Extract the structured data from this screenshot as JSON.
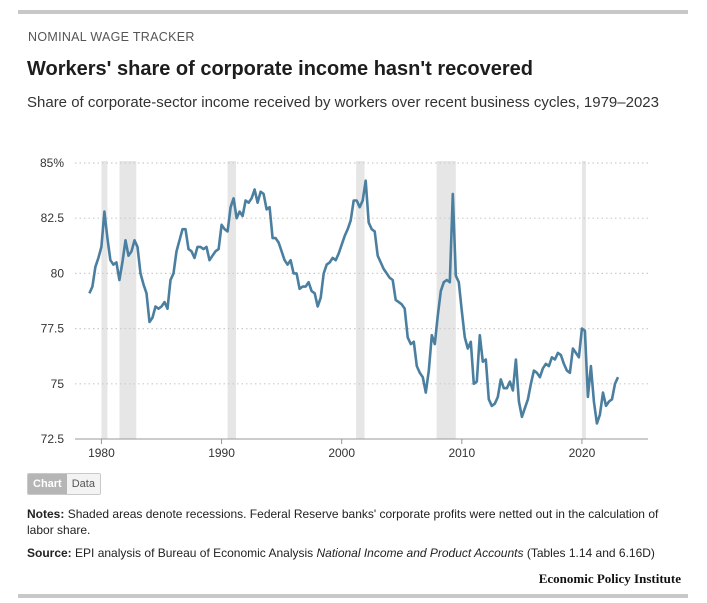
{
  "header": {
    "kicker": "NOMINAL WAGE TRACKER",
    "title": "Workers' share of corporate income hasn't recovered",
    "subtitle": "Share of corporate-sector income received by workers over recent business cycles, 1979–2023"
  },
  "toggle": {
    "chart_label": "Chart",
    "data_label": "Data"
  },
  "footer": {
    "notes_label": "Notes:",
    "notes_text": "Shaded areas denote recessions. Federal Reserve banks' corporate profits were netted out in the calculation of labor share.",
    "source_label": "Source:",
    "source_pre": "EPI analysis of Bureau of Economic Analysis ",
    "source_italic": "National Income and Product Accounts",
    "source_post": " (Tables 1.14 and 6.16D)",
    "brand": "Economic Policy Institute"
  },
  "colors": {
    "line": "#4b7fa0",
    "recession": "#e6e6e6",
    "grid": "#cccccc",
    "axis": "#999999"
  },
  "chart_data": {
    "type": "line",
    "xlim": [
      1977.8,
      2025.5
    ],
    "ylim": [
      72.5,
      85
    ],
    "x_ticks": [
      1980,
      1990,
      2000,
      2010,
      2020
    ],
    "x_tick_labels": [
      "1980",
      "1990",
      "2000",
      "2010",
      "2020"
    ],
    "y_ticks": [
      72.5,
      75,
      77.5,
      80,
      82.5,
      85
    ],
    "y_tick_labels": [
      "72.5",
      "75",
      "77.5",
      "80",
      "82.5",
      "85%"
    ],
    "grid": "horizontal dotted",
    "recessions": [
      [
        1980.0,
        1980.5
      ],
      [
        1981.5,
        1982.9
      ],
      [
        1990.5,
        1991.2
      ],
      [
        2001.2,
        2001.9
      ],
      [
        2007.9,
        2009.5
      ],
      [
        2020.0,
        2020.3
      ]
    ],
    "series": [
      {
        "points": [
          [
            1979.0,
            79.1
          ],
          [
            1979.25,
            79.4
          ],
          [
            1979.5,
            80.3
          ],
          [
            1979.75,
            80.7
          ],
          [
            1980.0,
            81.2
          ],
          [
            1980.25,
            82.8
          ],
          [
            1980.5,
            81.6
          ],
          [
            1980.75,
            80.6
          ],
          [
            1981.0,
            80.4
          ],
          [
            1981.25,
            80.5
          ],
          [
            1981.5,
            79.7
          ],
          [
            1981.75,
            80.5
          ],
          [
            1982.0,
            81.5
          ],
          [
            1982.25,
            80.8
          ],
          [
            1982.5,
            81.0
          ],
          [
            1982.75,
            81.5
          ],
          [
            1983.0,
            81.2
          ],
          [
            1983.25,
            80.0
          ],
          [
            1983.5,
            79.5
          ],
          [
            1983.75,
            79.1
          ],
          [
            1984.0,
            77.8
          ],
          [
            1984.25,
            78.0
          ],
          [
            1984.5,
            78.5
          ],
          [
            1984.75,
            78.4
          ],
          [
            1985.0,
            78.5
          ],
          [
            1985.25,
            78.7
          ],
          [
            1985.5,
            78.4
          ],
          [
            1985.75,
            79.7
          ],
          [
            1986.0,
            80.0
          ],
          [
            1986.25,
            81.0
          ],
          [
            1986.5,
            81.5
          ],
          [
            1986.75,
            82.0
          ],
          [
            1987.0,
            82.0
          ],
          [
            1987.25,
            81.1
          ],
          [
            1987.5,
            81.0
          ],
          [
            1987.75,
            80.7
          ],
          [
            1988.0,
            81.2
          ],
          [
            1988.25,
            81.2
          ],
          [
            1988.5,
            81.1
          ],
          [
            1988.75,
            81.2
          ],
          [
            1989.0,
            80.6
          ],
          [
            1989.25,
            80.8
          ],
          [
            1989.5,
            81.0
          ],
          [
            1989.75,
            81.1
          ],
          [
            1990.0,
            82.2
          ],
          [
            1990.25,
            82.0
          ],
          [
            1990.5,
            81.9
          ],
          [
            1990.75,
            83.0
          ],
          [
            1991.0,
            83.4
          ],
          [
            1991.25,
            82.5
          ],
          [
            1991.5,
            82.8
          ],
          [
            1991.75,
            82.6
          ],
          [
            1992.0,
            83.3
          ],
          [
            1992.25,
            83.2
          ],
          [
            1992.5,
            83.4
          ],
          [
            1992.75,
            83.8
          ],
          [
            1993.0,
            83.2
          ],
          [
            1993.25,
            83.7
          ],
          [
            1993.5,
            83.6
          ],
          [
            1993.75,
            82.9
          ],
          [
            1994.0,
            83.0
          ],
          [
            1994.25,
            81.6
          ],
          [
            1994.5,
            81.6
          ],
          [
            1994.75,
            81.4
          ],
          [
            1995.0,
            81.0
          ],
          [
            1995.25,
            80.6
          ],
          [
            1995.5,
            80.4
          ],
          [
            1995.75,
            80.6
          ],
          [
            1996.0,
            80.0
          ],
          [
            1996.25,
            80.0
          ],
          [
            1996.5,
            79.3
          ],
          [
            1996.75,
            79.4
          ],
          [
            1997.0,
            79.4
          ],
          [
            1997.25,
            79.6
          ],
          [
            1997.5,
            79.2
          ],
          [
            1997.75,
            79.1
          ],
          [
            1998.0,
            78.5
          ],
          [
            1998.25,
            78.9
          ],
          [
            1998.5,
            80.0
          ],
          [
            1998.75,
            80.4
          ],
          [
            1999.0,
            80.5
          ],
          [
            1999.25,
            80.7
          ],
          [
            1999.5,
            80.6
          ],
          [
            1999.75,
            80.9
          ],
          [
            2000.0,
            81.3
          ],
          [
            2000.25,
            81.7
          ],
          [
            2000.5,
            82.0
          ],
          [
            2000.75,
            82.4
          ],
          [
            2001.0,
            83.3
          ],
          [
            2001.25,
            83.3
          ],
          [
            2001.5,
            83.0
          ],
          [
            2001.75,
            83.3
          ],
          [
            2002.0,
            84.2
          ],
          [
            2002.25,
            82.3
          ],
          [
            2002.5,
            82.0
          ],
          [
            2002.75,
            81.9
          ],
          [
            2003.0,
            80.8
          ],
          [
            2003.25,
            80.5
          ],
          [
            2003.5,
            80.2
          ],
          [
            2003.75,
            80.0
          ],
          [
            2004.0,
            79.8
          ],
          [
            2004.25,
            79.7
          ],
          [
            2004.5,
            78.8
          ],
          [
            2004.75,
            78.7
          ],
          [
            2005.0,
            78.6
          ],
          [
            2005.25,
            78.4
          ],
          [
            2005.5,
            77.1
          ],
          [
            2005.75,
            76.8
          ],
          [
            2006.0,
            76.9
          ],
          [
            2006.25,
            75.8
          ],
          [
            2006.5,
            75.5
          ],
          [
            2006.75,
            75.3
          ],
          [
            2007.0,
            74.6
          ],
          [
            2007.25,
            75.6
          ],
          [
            2007.5,
            77.2
          ],
          [
            2007.75,
            76.8
          ],
          [
            2008.0,
            78.1
          ],
          [
            2008.25,
            79.2
          ],
          [
            2008.5,
            79.6
          ],
          [
            2008.75,
            79.7
          ],
          [
            2009.0,
            79.6
          ],
          [
            2009.25,
            83.6
          ],
          [
            2009.5,
            79.9
          ],
          [
            2009.75,
            79.6
          ],
          [
            2010.0,
            78.3
          ],
          [
            2010.25,
            77.1
          ],
          [
            2010.5,
            76.6
          ],
          [
            2010.75,
            76.9
          ],
          [
            2011.0,
            75.0
          ],
          [
            2011.25,
            75.1
          ],
          [
            2011.5,
            77.2
          ],
          [
            2011.75,
            76.0
          ],
          [
            2012.0,
            76.1
          ],
          [
            2012.25,
            74.3
          ],
          [
            2012.5,
            74.0
          ],
          [
            2012.75,
            74.1
          ],
          [
            2013.0,
            74.4
          ],
          [
            2013.25,
            75.2
          ],
          [
            2013.5,
            74.8
          ],
          [
            2013.75,
            74.8
          ],
          [
            2014.0,
            75.1
          ],
          [
            2014.25,
            74.7
          ],
          [
            2014.5,
            76.1
          ],
          [
            2014.75,
            74.2
          ],
          [
            2015.0,
            73.5
          ],
          [
            2015.25,
            73.9
          ],
          [
            2015.5,
            74.3
          ],
          [
            2015.75,
            75.0
          ],
          [
            2016.0,
            75.6
          ],
          [
            2016.25,
            75.5
          ],
          [
            2016.5,
            75.3
          ],
          [
            2016.75,
            75.7
          ],
          [
            2017.0,
            75.9
          ],
          [
            2017.25,
            75.8
          ],
          [
            2017.5,
            76.2
          ],
          [
            2017.75,
            76.1
          ],
          [
            2018.0,
            76.4
          ],
          [
            2018.25,
            76.3
          ],
          [
            2018.5,
            75.9
          ],
          [
            2018.75,
            75.6
          ],
          [
            2019.0,
            75.5
          ],
          [
            2019.25,
            76.6
          ],
          [
            2019.5,
            76.4
          ],
          [
            2019.75,
            76.2
          ],
          [
            2020.0,
            77.5
          ],
          [
            2020.25,
            77.4
          ],
          [
            2020.5,
            74.4
          ],
          [
            2020.75,
            75.8
          ],
          [
            2021.0,
            74.2
          ],
          [
            2021.25,
            73.2
          ],
          [
            2021.5,
            73.6
          ],
          [
            2021.75,
            74.6
          ],
          [
            2022.0,
            74.0
          ],
          [
            2022.25,
            74.2
          ],
          [
            2022.5,
            74.3
          ],
          [
            2022.75,
            75.0
          ],
          [
            2023.0,
            75.3
          ]
        ]
      }
    ]
  }
}
